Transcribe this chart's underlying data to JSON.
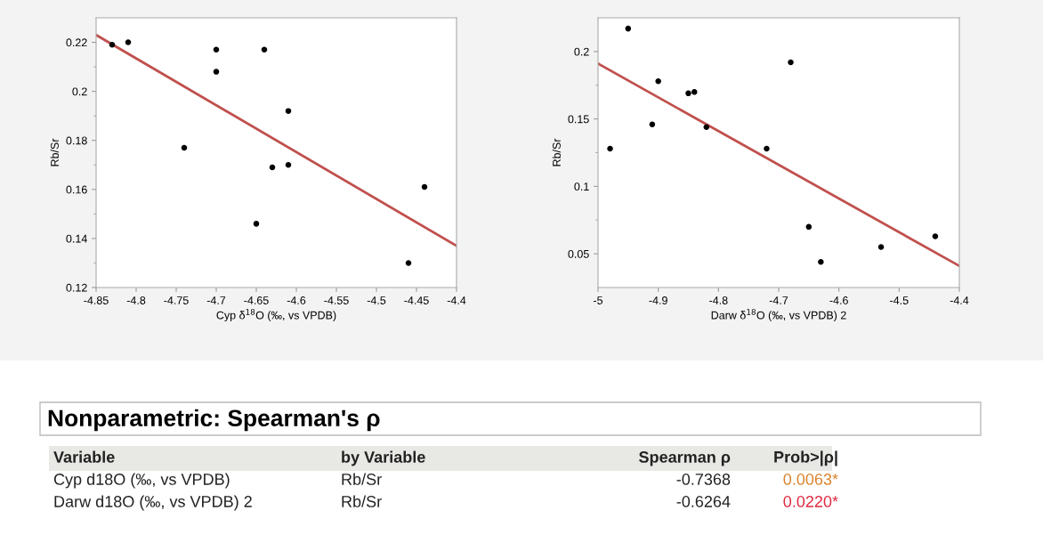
{
  "chart_data": [
    {
      "type": "scatter",
      "xlabel": "Cyp δ$^{18}$O (‰, vs VPDB)",
      "ylabel": "Rb/Sr",
      "xlim": [
        -4.85,
        -4.4
      ],
      "ylim": [
        0.12,
        0.23
      ],
      "xticks": [
        -4.85,
        -4.8,
        -4.75,
        -4.7,
        -4.65,
        -4.6,
        -4.55,
        -4.5,
        -4.45,
        -4.4
      ],
      "yticks": [
        0.12,
        {
          "value": 0.13,
          "label": null
        },
        0.14,
        {
          "value": 0.15,
          "label": null
        },
        0.16,
        {
          "value": 0.17,
          "label": null
        },
        0.18,
        {
          "value": 0.19,
          "label": null
        },
        {
          "value": 0.2,
          "label": "0.2"
        },
        {
          "value": 0.21,
          "label": null
        },
        0.22
      ],
      "grid": false,
      "series": [
        {
          "type": "scatter",
          "marker": "circle",
          "color": "#000000",
          "x": [
            -4.83,
            -4.81,
            -4.7,
            -4.7,
            -4.64,
            -4.74,
            -4.61,
            -4.61,
            -4.63,
            -4.65,
            -4.46,
            -4.44
          ],
          "values": [
            0.219,
            0.22,
            0.217,
            0.208,
            0.217,
            0.177,
            0.192,
            0.17,
            0.169,
            0.146,
            0.13,
            0.161
          ]
        },
        {
          "type": "line",
          "color": "#c0504d",
          "x": [
            -4.85,
            -4.4
          ],
          "values": [
            0.223,
            0.137
          ]
        }
      ]
    },
    {
      "type": "scatter",
      "xlabel": "Darw δ$^{18}$O (‰, vs VPDB) 2",
      "ylabel": "Rb/Sr",
      "xlim": [
        -5,
        -4.4
      ],
      "ylim": [
        0.025,
        0.225
      ],
      "xticks": [
        -5,
        -4.9,
        -4.8,
        -4.7,
        -4.6,
        -4.5,
        -4.4
      ],
      "yticks": [
        {
          "value": 0.05,
          "label": "0.05"
        },
        {
          "value": 0.075,
          "label": null
        },
        {
          "value": 0.1,
          "label": "0.1"
        },
        {
          "value": 0.125,
          "label": null
        },
        {
          "value": 0.15,
          "label": "0.15"
        },
        {
          "value": 0.175,
          "label": null
        },
        {
          "value": 0.2,
          "label": "0.2"
        }
      ],
      "grid": false,
      "series": [
        {
          "type": "scatter",
          "marker": "circle",
          "color": "#000000",
          "x": [
            -4.98,
            -4.95,
            -4.9,
            -4.91,
            -4.85,
            -4.84,
            -4.82,
            -4.72,
            -4.68,
            -4.65,
            -4.63,
            -4.53,
            -4.44
          ],
          "values": [
            0.128,
            0.217,
            0.178,
            0.146,
            0.169,
            0.17,
            0.144,
            0.128,
            0.192,
            0.07,
            0.044,
            0.055,
            0.063
          ]
        },
        {
          "type": "line",
          "color": "#c0504d",
          "x": [
            -5,
            -4.4
          ],
          "values": [
            0.191,
            0.041
          ]
        }
      ]
    },
    {
      "type": "other",
      "title": "Nonparametric: Spearman's ρ",
      "annotations": [
        "Variable",
        "by Variable",
        "Spearman ρ",
        "Prob>|ρ|",
        "Cyp d18O (‰, vs VPDB)",
        "Rb/Sr",
        "-0.7368",
        "0.0063*",
        "Darw d18O (‰, vs VPDB) 2",
        "Rb/Sr",
        "-0.6264",
        "0.0220*"
      ],
      "colors": [
        null,
        null,
        null,
        null,
        null,
        null,
        null,
        "#d9822b",
        null,
        null,
        null,
        "#e0293f"
      ]
    }
  ]
}
